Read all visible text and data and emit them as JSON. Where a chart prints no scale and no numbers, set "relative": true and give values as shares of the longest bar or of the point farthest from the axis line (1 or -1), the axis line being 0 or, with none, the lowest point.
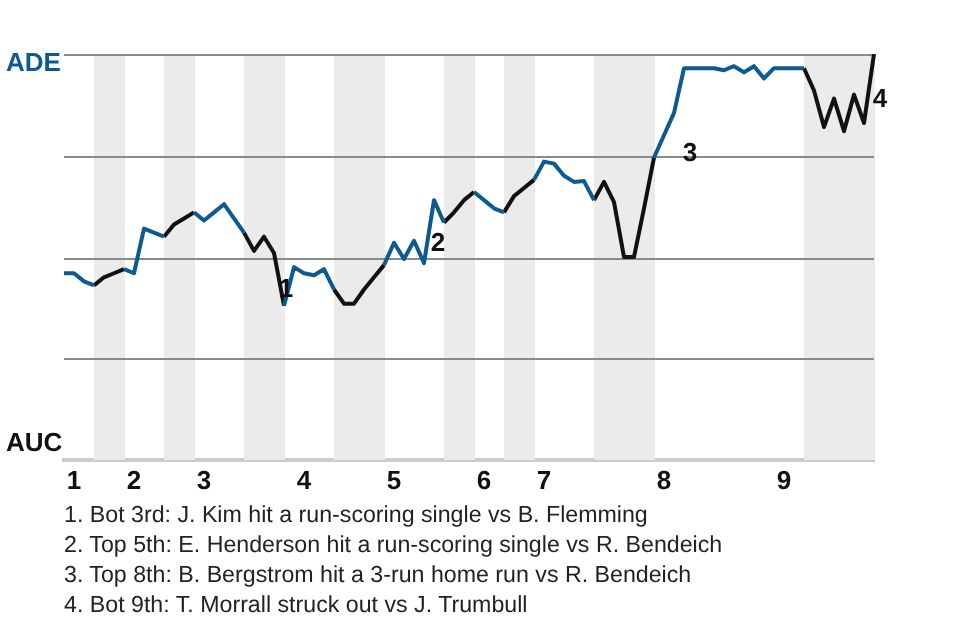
{
  "chart_data": {
    "type": "line",
    "relative": true,
    "categories": [
      null,
      "1",
      null,
      null,
      null,
      null,
      null,
      "2",
      null,
      null,
      null,
      null,
      null,
      null,
      "3",
      null,
      null,
      null,
      null,
      null,
      null,
      null,
      null,
      null,
      "4",
      null,
      null,
      null,
      null,
      null,
      null,
      null,
      null,
      "5",
      null,
      null,
      null,
      null,
      null,
      null,
      null,
      null,
      "6",
      null,
      null,
      null,
      null,
      null,
      "7",
      null,
      null,
      null,
      null,
      null,
      null,
      null,
      null,
      null,
      null,
      null,
      "8",
      null,
      null,
      null,
      null,
      null,
      null,
      null,
      null,
      null,
      null,
      null,
      "9",
      null,
      null,
      null,
      null,
      null,
      null,
      null,
      null,
      null
    ],
    "series": [
      {
        "color": "#0d5a92",
        "values": [
          0.46,
          0.46,
          0.44,
          0.43,
          null,
          null,
          0.47,
          0.46,
          0.57,
          0.56,
          0.55,
          null,
          null,
          0.61,
          0.59,
          0.61,
          0.63,
          0.595,
          0.56,
          null,
          null,
          null,
          0.38,
          0.475,
          0.46,
          0.455,
          0.47,
          0.42,
          null,
          null,
          null,
          null,
          0.48,
          0.535,
          0.495,
          0.54,
          0.485,
          0.64,
          0.585,
          null,
          null,
          0.66,
          0.64,
          0.62,
          0.61,
          null,
          null,
          0.69,
          0.735,
          0.73,
          0.7,
          0.685,
          0.687,
          0.64,
          null,
          null,
          null,
          null,
          null,
          0.745,
          0.8,
          0.855,
          0.965,
          0.965,
          0.965,
          0.965,
          0.96,
          0.97,
          0.955,
          0.97,
          0.94,
          0.965,
          0.965,
          0.965,
          0.965,
          null,
          null,
          null,
          null,
          null,
          null,
          null
        ]
      },
      {
        "color": "#111111",
        "values": [
          null,
          null,
          null,
          0.43,
          0.45,
          0.46,
          0.47,
          null,
          null,
          null,
          0.55,
          0.58,
          0.595,
          0.61,
          null,
          null,
          null,
          null,
          0.56,
          0.515,
          0.55,
          0.51,
          0.38,
          null,
          null,
          null,
          null,
          0.42,
          0.385,
          0.385,
          0.42,
          0.45,
          0.48,
          null,
          null,
          null,
          null,
          null,
          0.585,
          0.61,
          0.64,
          0.66,
          null,
          null,
          0.61,
          0.65,
          0.67,
          0.69,
          null,
          null,
          null,
          null,
          null,
          0.64,
          0.685,
          0.635,
          0.5,
          0.5,
          0.62,
          0.745,
          null,
          null,
          null,
          null,
          null,
          null,
          null,
          null,
          null,
          null,
          null,
          null,
          null,
          null,
          0.965,
          0.91,
          0.82,
          0.89,
          0.81,
          0.9,
          0.83,
          1
        ]
      }
    ],
    "ref_lines": [
      {
        "axis": "y",
        "value": 0.25,
        "color": "#8a8a8a"
      },
      {
        "axis": "y",
        "value": 0.5,
        "color": "#8a8a8a"
      },
      {
        "axis": "y",
        "value": 0.75,
        "color": "#8a8a8a"
      },
      {
        "axis": "y",
        "value": 1,
        "color": "#8a8a8a"
      }
    ],
    "annotations": [
      "ADE",
      "AUC",
      "1",
      "2",
      "3",
      "4",
      "1. Bot 3rd: J. Kim hit a run-scoring single vs B. Flemming",
      "2. Top 5th: E. Henderson hit a run-scoring single vs R. Bendeich",
      "3. Top 8th: B. Bergstrom hit a 3-run home run vs R. Bendeich",
      "4. Bot 9th: T. Morrall struck out vs J. Trumbull"
    ],
    "marker": "none",
    "legend": false
  }
}
